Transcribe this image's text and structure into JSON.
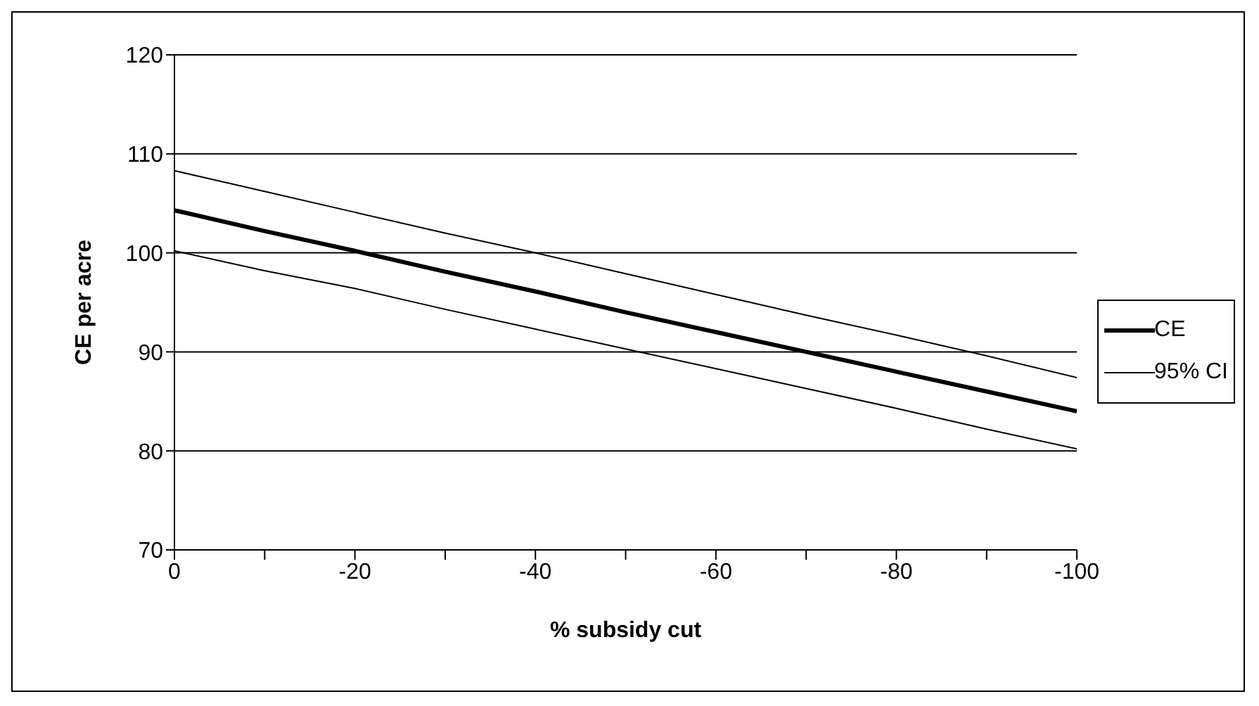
{
  "chart_data": {
    "type": "line",
    "xlabel": "% subsidy cut",
    "ylabel": "CE per acre",
    "x": [
      0,
      -10,
      -20,
      -30,
      -40,
      -50,
      -60,
      -70,
      -80,
      -90,
      -100
    ],
    "series": [
      {
        "name": "CE",
        "color": "#000000",
        "values": [
          104.3,
          102.2,
          100.2,
          98.1,
          96.1,
          94,
          92,
          90,
          88,
          86,
          84
        ]
      },
      {
        "name": "95% CI",
        "color": "#000000",
        "values": [
          108.3,
          106.2,
          104.1,
          102,
          100,
          97.9,
          95.8,
          93.7,
          91.7,
          89.6,
          87.4
        ]
      },
      {
        "color": "#000000",
        "values": [
          100.2,
          98.2,
          96.4,
          94.3,
          92.3,
          90.3,
          88.3,
          86.3,
          84.3,
          82.2,
          80.2
        ]
      }
    ],
    "xlim": [
      0,
      -100
    ],
    "xticks": [
      0,
      {
        "value": -10,
        "label": null
      },
      -20,
      {
        "value": -30,
        "label": null
      },
      -40,
      {
        "value": -50,
        "label": null
      },
      -60,
      {
        "value": -70,
        "label": null
      },
      -80,
      {
        "value": -90,
        "label": null
      },
      -100
    ],
    "ylim": [
      70,
      120
    ],
    "yticks": [
      70,
      80,
      90,
      100,
      110,
      120
    ],
    "grid": "y",
    "legend": "right",
    "marker": "none",
    "line_style": "solid"
  }
}
